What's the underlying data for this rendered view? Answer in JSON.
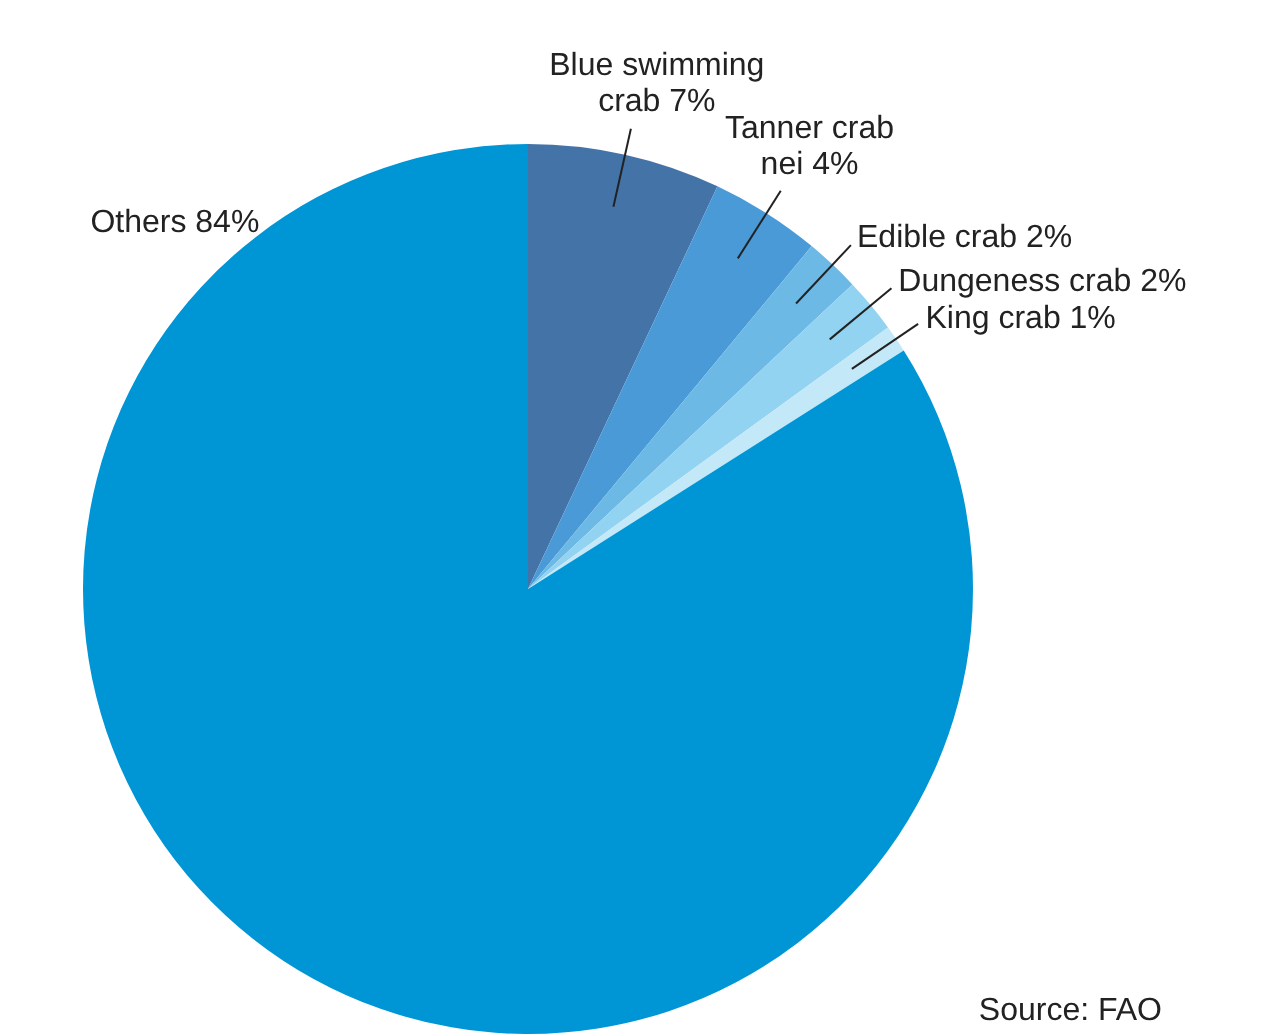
{
  "chart_data": {
    "type": "pie",
    "categories": [
      "Blue swimming crab",
      "Tanner crab nei",
      "Edible crab",
      "Dungeness crab",
      "King crab",
      "Others"
    ],
    "values": [
      7,
      4,
      2,
      2,
      1,
      84
    ],
    "value_labels": [
      "7%",
      "4%",
      "2%",
      "2%",
      "1%",
      "84%"
    ],
    "colors": [
      "#4473a8",
      "#4a9ad8",
      "#6cb9e6",
      "#92d3f2",
      "#c3e8f8",
      "#0096d6"
    ],
    "legend": false,
    "annotations": [
      "Source: FAO"
    ]
  }
}
